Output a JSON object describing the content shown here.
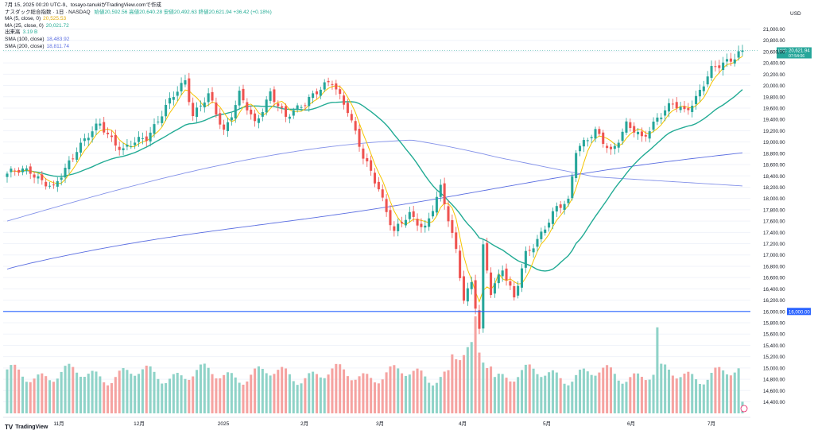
{
  "header": {
    "snapshot_line": "7月 15, 2025 00:20 UTC-9、tosayo-tanukiがTradingView.comで作成",
    "currency": "USD"
  },
  "legend": {
    "title": "ナスダック総合指数 · 1日 · NASDAQ",
    "ohlc": "始値20,592.56  高値20,640.28  安値20,492.63  終値20,621.94  +36.42 (+0.18%)",
    "rows": [
      {
        "label": "MA (5, close, 0)",
        "value": "20,525.53",
        "color": "#f5c400"
      },
      {
        "label": "MA (25, close, 0)",
        "value": "20,021.72",
        "color": "#22ab94"
      },
      {
        "label": "出来高",
        "value": "3.19 B",
        "color": "#22ab94"
      },
      {
        "label": "SMA (100, close)",
        "value": "18,483.92",
        "color": "#5b6ee1"
      },
      {
        "label": "SMA (200, close)",
        "value": "18,811.74",
        "color": "#5b6ee1"
      }
    ]
  },
  "brand": {
    "name": "TradingView"
  },
  "colors": {
    "up": "#26a69a",
    "down": "#ef5350",
    "vol_up": "#8fd3c8",
    "vol_down": "#f5a3a1",
    "ma5": "#f5c400",
    "ma25": "#22ab94",
    "sma100": "#5b6ee1",
    "sma200": "#5b6ee1",
    "hline": "#2962ff",
    "last_tag": "#26a69a"
  },
  "chart_data": {
    "type": "candlestick",
    "symbol": "ナスダック総合指数",
    "interval": "1日",
    "y_ticks": [
      "21,000.00",
      "20,800.00",
      "20,600.00",
      "20,400.00",
      "20,200.00",
      "20,000.00",
      "19,800.00",
      "19,600.00",
      "19,400.00",
      "19,200.00",
      "19,000.00",
      "18,800.00",
      "18,600.00",
      "18,400.00",
      "18,200.00",
      "18,000.00",
      "17,800.00",
      "17,600.00",
      "17,400.00",
      "17,200.00",
      "17,000.00",
      "16,800.00",
      "16,600.00",
      "16,400.00",
      "16,200.00",
      "16,000.00",
      "15,800.00",
      "15,600.00",
      "15,400.00",
      "15,200.00",
      "15,000.00",
      "14,800.00",
      "14,600.00",
      "14,400.00"
    ],
    "ylim": [
      14300,
      21300
    ],
    "x_labels": [
      "11月",
      "12月",
      "2025",
      "2月",
      "3月",
      "4月",
      "5月",
      "6月",
      "7月"
    ],
    "last_price_label": "20,621.94",
    "last_price_code": "IXIC",
    "last_countdown": "07:54:06",
    "horizontal_line": {
      "value": 16000,
      "label": "16,000.00"
    },
    "ma_last": {
      "ma5": 20525.53,
      "ma25": 20021.72,
      "sma100": 18483.92,
      "sma200": 18811.74
    },
    "anchors": [
      {
        "d": 0,
        "p": 18440
      },
      {
        "d": 6,
        "p": 18500
      },
      {
        "d": 12,
        "p": 18150
      },
      {
        "d": 18,
        "p": 18900
      },
      {
        "d": 24,
        "p": 19300
      },
      {
        "d": 30,
        "p": 18850
      },
      {
        "d": 36,
        "p": 19100
      },
      {
        "d": 42,
        "p": 19700
      },
      {
        "d": 46,
        "p": 20100
      },
      {
        "d": 48,
        "p": 19500
      },
      {
        "d": 52,
        "p": 19800
      },
      {
        "d": 56,
        "p": 19200
      },
      {
        "d": 60,
        "p": 19850
      },
      {
        "d": 64,
        "p": 19300
      },
      {
        "d": 68,
        "p": 19900
      },
      {
        "d": 72,
        "p": 19400
      },
      {
        "d": 78,
        "p": 19800
      },
      {
        "d": 84,
        "p": 20050
      },
      {
        "d": 88,
        "p": 19600
      },
      {
        "d": 92,
        "p": 18700
      },
      {
        "d": 96,
        "p": 18200
      },
      {
        "d": 100,
        "p": 17400
      },
      {
        "d": 104,
        "p": 17700
      },
      {
        "d": 108,
        "p": 17500
      },
      {
        "d": 112,
        "p": 18150
      },
      {
        "d": 116,
        "p": 17100
      },
      {
        "d": 118,
        "p": 16250
      },
      {
        "d": 120,
        "p": 16500
      },
      {
        "d": 122,
        "p": 15650
      },
      {
        "d": 123,
        "p": 17100
      },
      {
        "d": 125,
        "p": 16350
      },
      {
        "d": 128,
        "p": 16800
      },
      {
        "d": 131,
        "p": 16200
      },
      {
        "d": 134,
        "p": 17000
      },
      {
        "d": 138,
        "p": 17400
      },
      {
        "d": 142,
        "p": 17800
      },
      {
        "d": 145,
        "p": 17950
      },
      {
        "d": 147,
        "p": 18900
      },
      {
        "d": 152,
        "p": 19150
      },
      {
        "d": 156,
        "p": 18850
      },
      {
        "d": 160,
        "p": 19300
      },
      {
        "d": 164,
        "p": 19050
      },
      {
        "d": 168,
        "p": 19450
      },
      {
        "d": 172,
        "p": 19650
      },
      {
        "d": 175,
        "p": 19550
      },
      {
        "d": 178,
        "p": 19800
      },
      {
        "d": 182,
        "p": 20250
      },
      {
        "d": 186,
        "p": 20450
      },
      {
        "d": 190,
        "p": 20620
      }
    ],
    "n_days": 191
  }
}
